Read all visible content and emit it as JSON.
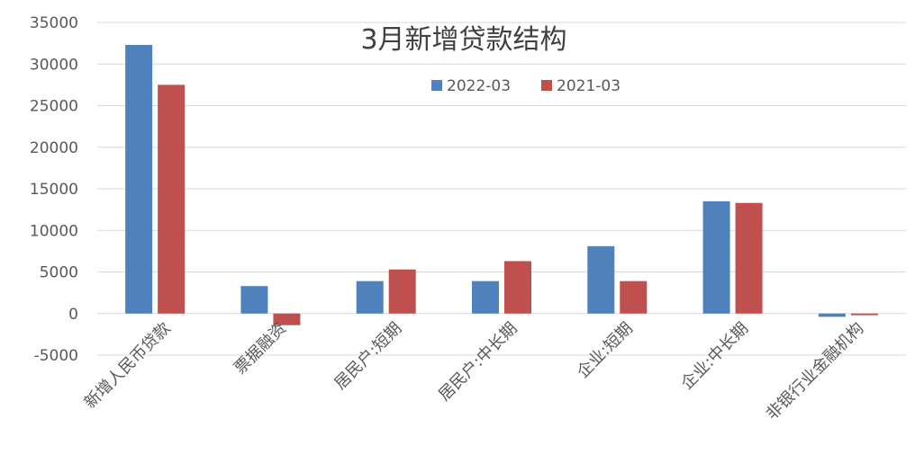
{
  "chart_data": {
    "type": "bar",
    "title": "3月新增贷款结构",
    "xlabel": "",
    "ylabel": "",
    "ylim": [
      -5000,
      35000
    ],
    "yticks": [
      35000,
      30000,
      25000,
      20000,
      15000,
      10000,
      5000,
      0,
      -5000
    ],
    "grid": true,
    "legend_position": "top-center",
    "categories": [
      "新增人民币贷款",
      "票据融资",
      "居民户:短期",
      "居民户:中长期",
      "企业:短期",
      "企业:中长期",
      "非银行业金融机构"
    ],
    "series": [
      {
        "name": "2022-03",
        "color": "#4f81bd",
        "values": [
          32300,
          3300,
          3900,
          3900,
          8100,
          13500,
          -400
        ]
      },
      {
        "name": "2021-03",
        "color": "#c0504d",
        "values": [
          27500,
          -1400,
          5300,
          6300,
          3900,
          13300,
          -200
        ]
      }
    ]
  }
}
